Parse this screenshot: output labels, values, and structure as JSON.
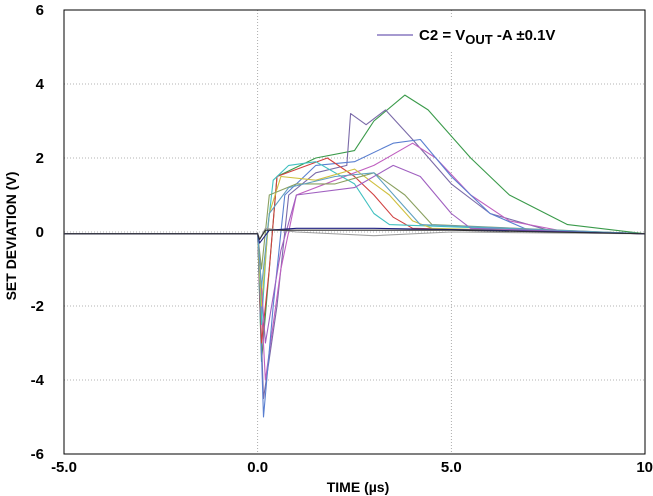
{
  "chart_data": {
    "type": "line",
    "title": "",
    "xlabel": "TIME (µs)",
    "ylabel": "SET DEVIATION (V)",
    "xlim": [
      -5,
      10
    ],
    "ylim": [
      -6,
      6
    ],
    "x_ticks": [
      {
        "value": -5,
        "label": "-5.0"
      },
      {
        "value": 0,
        "label": "0.0"
      },
      {
        "value": 5,
        "label": "5.0"
      },
      {
        "value": 10,
        "label": "10"
      }
    ],
    "y_ticks": [
      {
        "value": -6,
        "label": "-6"
      },
      {
        "value": -4,
        "label": "-4"
      },
      {
        "value": -2,
        "label": "-2"
      },
      {
        "value": 0,
        "label": "0"
      },
      {
        "value": 2,
        "label": "2"
      },
      {
        "value": 4,
        "label": "4"
      },
      {
        "value": 6,
        "label": "6"
      }
    ],
    "grid": true,
    "legend": {
      "position": "top-right",
      "entry": {
        "main": "C2 = V",
        "sub": "OUT",
        "rest": " -A ±0.1V",
        "color": "#8878c0"
      }
    },
    "series": [
      {
        "color": "#3a9a4a",
        "points": [
          [
            -5,
            -0.05
          ],
          [
            0,
            -0.05
          ],
          [
            0.1,
            -3.5
          ],
          [
            0.3,
            -1
          ],
          [
            0.5,
            1.5
          ],
          [
            1.5,
            2
          ],
          [
            2.5,
            2.2
          ],
          [
            3,
            3
          ],
          [
            3.8,
            3.7
          ],
          [
            4.4,
            3.3
          ],
          [
            5.5,
            2
          ],
          [
            6.5,
            1
          ],
          [
            8,
            0.2
          ],
          [
            10,
            -0.05
          ]
        ]
      },
      {
        "color": "#7a6aa8",
        "points": [
          [
            -5,
            -0.05
          ],
          [
            0,
            -0.05
          ],
          [
            0.15,
            -4.5
          ],
          [
            0.5,
            -2
          ],
          [
            0.8,
            1
          ],
          [
            1.5,
            1.6
          ],
          [
            2.3,
            1.8
          ],
          [
            2.4,
            3.2
          ],
          [
            2.8,
            2.9
          ],
          [
            3.3,
            3.3
          ],
          [
            4,
            2.5
          ],
          [
            5,
            1.3
          ],
          [
            6,
            0.5
          ],
          [
            7.5,
            0.05
          ],
          [
            10,
            -0.05
          ]
        ]
      },
      {
        "color": "#c060c0",
        "points": [
          [
            -5,
            -0.05
          ],
          [
            0,
            -0.05
          ],
          [
            0.2,
            -4
          ],
          [
            0.6,
            -1
          ],
          [
            1,
            1
          ],
          [
            2,
            1.4
          ],
          [
            3,
            1.8
          ],
          [
            4,
            2.4
          ],
          [
            4.6,
            2
          ],
          [
            5.5,
            1
          ],
          [
            6.5,
            0.3
          ],
          [
            8,
            0
          ],
          [
            10,
            -0.05
          ]
        ]
      },
      {
        "color": "#5a7fd0",
        "points": [
          [
            -5,
            -0.05
          ],
          [
            0,
            -0.05
          ],
          [
            0.15,
            -5
          ],
          [
            0.4,
            -2
          ],
          [
            0.7,
            1
          ],
          [
            1.5,
            1.8
          ],
          [
            2.5,
            1.9
          ],
          [
            3.5,
            2.4
          ],
          [
            4.2,
            2.5
          ],
          [
            5,
            1.5
          ],
          [
            6,
            0.5
          ],
          [
            7,
            0.05
          ],
          [
            10,
            -0.05
          ]
        ]
      },
      {
        "color": "#d04040",
        "points": [
          [
            -5,
            -0.05
          ],
          [
            0,
            -0.05
          ],
          [
            0.1,
            -3
          ],
          [
            0.3,
            -1
          ],
          [
            0.5,
            1.5
          ],
          [
            1.8,
            2
          ],
          [
            2.5,
            1.5
          ],
          [
            3,
            1
          ],
          [
            3.5,
            0.4
          ],
          [
            4,
            0.1
          ],
          [
            10,
            -0.05
          ]
        ]
      },
      {
        "color": "#40c0c0",
        "points": [
          [
            -5,
            -0.05
          ],
          [
            0,
            -0.05
          ],
          [
            0.1,
            -2.5
          ],
          [
            0.25,
            0
          ],
          [
            0.4,
            1.4
          ],
          [
            0.8,
            1.8
          ],
          [
            1.5,
            1.9
          ],
          [
            2.5,
            1.3
          ],
          [
            3,
            0.5
          ],
          [
            3.4,
            0.2
          ],
          [
            10,
            -0.05
          ]
        ]
      },
      {
        "color": "#d0c040",
        "points": [
          [
            -5,
            -0.05
          ],
          [
            0,
            -0.05
          ],
          [
            0.1,
            -2
          ],
          [
            0.3,
            0.5
          ],
          [
            0.6,
            1.5
          ],
          [
            1.5,
            1.4
          ],
          [
            2.5,
            1.7
          ],
          [
            3.4,
            1
          ],
          [
            4,
            0.3
          ],
          [
            4.5,
            0.1
          ],
          [
            10,
            -0.05
          ]
        ]
      },
      {
        "color": "#8aa060",
        "points": [
          [
            -5,
            -0.05
          ],
          [
            0,
            -0.05
          ],
          [
            0.1,
            -1
          ],
          [
            0.3,
            1
          ],
          [
            1,
            1.3
          ],
          [
            2,
            1.3
          ],
          [
            3,
            1.6
          ],
          [
            3.8,
            1
          ],
          [
            4.5,
            0.2
          ],
          [
            10,
            -0.05
          ]
        ]
      },
      {
        "color": "#a060c0",
        "points": [
          [
            -5,
            -0.05
          ],
          [
            0,
            -0.05
          ],
          [
            0.2,
            -3
          ],
          [
            0.6,
            -0.5
          ],
          [
            1,
            1
          ],
          [
            2.5,
            1.2
          ],
          [
            3.5,
            1.8
          ],
          [
            4.2,
            1.5
          ],
          [
            5,
            0.5
          ],
          [
            5.5,
            0.1
          ],
          [
            10,
            -0.05
          ]
        ]
      },
      {
        "color": "#60a0c0",
        "points": [
          [
            -5,
            -0.05
          ],
          [
            0,
            -0.05
          ],
          [
            0.1,
            -1.5
          ],
          [
            0.3,
            0.5
          ],
          [
            0.8,
            1.2
          ],
          [
            2,
            1.5
          ],
          [
            3,
            1.6
          ],
          [
            3.6,
            0.9
          ],
          [
            4.2,
            0.2
          ],
          [
            10,
            -0.05
          ]
        ]
      },
      {
        "color": "#a0a0a0",
        "points": [
          [
            -5,
            -0.05
          ],
          [
            0,
            -0.05
          ],
          [
            0.05,
            -0.2
          ],
          [
            0.2,
            0.1
          ],
          [
            1,
            0
          ],
          [
            3,
            -0.1
          ],
          [
            5,
            0
          ],
          [
            10,
            -0.05
          ]
        ]
      },
      {
        "color": "#202080",
        "points": [
          [
            -5,
            -0.05
          ],
          [
            0,
            -0.05
          ],
          [
            0.05,
            -0.3
          ],
          [
            0.3,
            0.05
          ],
          [
            1,
            0.1
          ],
          [
            3,
            0.1
          ],
          [
            6,
            0.05
          ],
          [
            10,
            -0.05
          ]
        ]
      },
      {
        "color": "#303030",
        "points": [
          [
            -5,
            -0.05
          ],
          [
            0,
            -0.05
          ],
          [
            0.05,
            -0.2
          ],
          [
            0.2,
            0.05
          ],
          [
            2,
            0.05
          ],
          [
            5,
            0.05
          ],
          [
            10,
            -0.05
          ]
        ]
      }
    ]
  }
}
